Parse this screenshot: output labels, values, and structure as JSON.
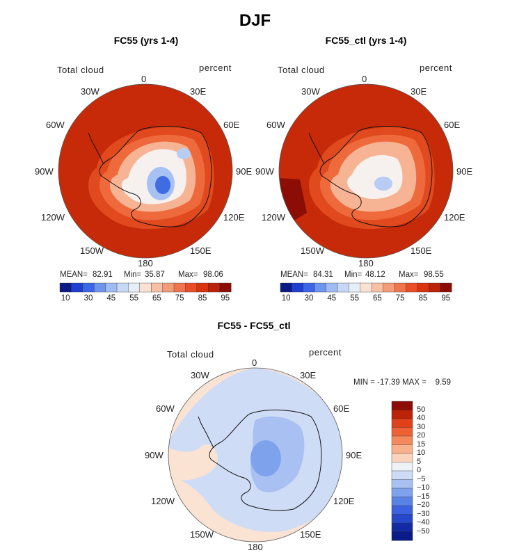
{
  "figure": {
    "title": "DJF"
  },
  "panels": [
    {
      "title": "FC55 (yrs 1-4)",
      "variable_label": "Total cloud",
      "units_label": "percent",
      "stats": {
        "mean_label": "MEAN=",
        "mean": "82.91",
        "min_label": "Min=",
        "min": "35.87",
        "max_label": "Max=",
        "max": "98.06"
      }
    },
    {
      "title": "FC55_ctl (yrs 1-4)",
      "variable_label": "Total cloud",
      "units_label": "percent",
      "stats": {
        "mean_label": "MEAN=",
        "mean": "84.31",
        "min_label": "Min=",
        "min": "48.12",
        "max_label": "Max=",
        "max": "98.55"
      }
    },
    {
      "title": "FC55 - FC55_ctl",
      "variable_label": "Total cloud",
      "units_label": "percent",
      "stats_line": "MIN = -17.39 MAX =    9.59"
    }
  ],
  "longitude_labels": [
    "0",
    "30E",
    "60E",
    "90E",
    "120E",
    "150E",
    "180",
    "150W",
    "120W",
    "90W",
    "60W",
    "30W"
  ],
  "colorbar_abs": {
    "colors": [
      "#0a1a86",
      "#1f3fd0",
      "#3b66e6",
      "#6e95ee",
      "#9fbbf3",
      "#c6d8f6",
      "#e6eef8",
      "#fbe1d1",
      "#f8c1a4",
      "#f49c77",
      "#f0754e",
      "#ea4e26",
      "#d9330f",
      "#bb2208",
      "#8b0d05"
    ],
    "tick_labels": [
      "10",
      "30",
      "45",
      "55",
      "65",
      "75",
      "85",
      "95"
    ]
  },
  "colorbar_diff": {
    "colors": [
      "#8b0d05",
      "#bb2208",
      "#e0401a",
      "#ee6035",
      "#f48a5c",
      "#f8b08d",
      "#fbd3bb",
      "#eef2f6",
      "#cddcf5",
      "#a9c1f2",
      "#7ea2ec",
      "#5a82e6",
      "#3b63e0",
      "#2646cc",
      "#122aa4",
      "#0a1a86"
    ],
    "labels": [
      "50",
      "40",
      "30",
      "20",
      "15",
      "10",
      "5",
      "0",
      "−5",
      "−10",
      "−15",
      "−20",
      "−30",
      "−40",
      "−50"
    ]
  },
  "colors": {
    "ocean_abs": "#c62a08",
    "diff_bg": "#fbe3d3",
    "diff_neg": "#cfdcf6"
  }
}
